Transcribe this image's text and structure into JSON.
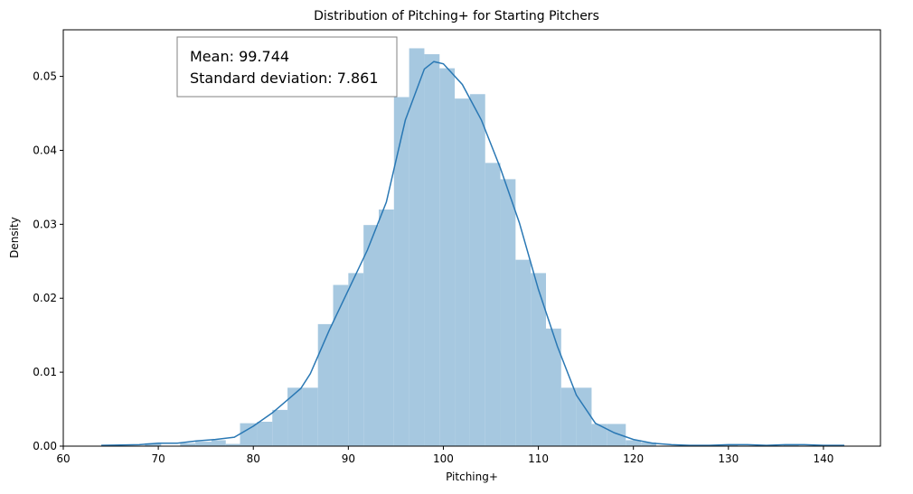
{
  "chart_data": {
    "type": "histogram",
    "title": "Distribution of Pitching+ for Starting Pitchers",
    "xlabel": "Pitching+",
    "ylabel": "Density",
    "xlim": [
      60,
      146
    ],
    "ylim": [
      0,
      0.0563
    ],
    "xticks": [
      60,
      70,
      80,
      90,
      100,
      110,
      120,
      130,
      140
    ],
    "yticks": [
      0.0,
      0.01,
      0.02,
      0.03,
      0.04,
      0.05
    ],
    "ytick_labels": [
      "0.00",
      "0.01",
      "0.02",
      "0.03",
      "0.04",
      "0.05"
    ],
    "bar_color": "#a6c8e0",
    "line_color": "#2a78b4",
    "bins": [
      {
        "x0": 68.6,
        "x1": 70.3,
        "density": 0.0004
      },
      {
        "x0": 72.3,
        "x1": 73.9,
        "density": 0.0004
      },
      {
        "x0": 73.9,
        "x1": 75.6,
        "density": 0.0006
      },
      {
        "x0": 75.6,
        "x1": 77.1,
        "density": 0.0008
      },
      {
        "x0": 77.1,
        "x1": 78.6,
        "density": 0.0003
      },
      {
        "x0": 78.6,
        "x1": 80.4,
        "density": 0.0031
      },
      {
        "x0": 80.4,
        "x1": 82.0,
        "density": 0.0033
      },
      {
        "x0": 82.0,
        "x1": 83.6,
        "density": 0.0049
      },
      {
        "x0": 83.6,
        "x1": 85.2,
        "density": 0.0079
      },
      {
        "x0": 85.2,
        "x1": 86.8,
        "density": 0.0079
      },
      {
        "x0": 86.8,
        "x1": 88.4,
        "density": 0.0165
      },
      {
        "x0": 88.4,
        "x1": 90.0,
        "density": 0.0218
      },
      {
        "x0": 90.0,
        "x1": 91.6,
        "density": 0.0234
      },
      {
        "x0": 91.6,
        "x1": 93.2,
        "density": 0.0299
      },
      {
        "x0": 93.2,
        "x1": 94.8,
        "density": 0.032
      },
      {
        "x0": 94.8,
        "x1": 96.4,
        "density": 0.0472
      },
      {
        "x0": 96.4,
        "x1": 98.0,
        "density": 0.0538
      },
      {
        "x0": 98.0,
        "x1": 99.6,
        "density": 0.053
      },
      {
        "x0": 99.6,
        "x1": 101.2,
        "density": 0.0511
      },
      {
        "x0": 101.2,
        "x1": 102.8,
        "density": 0.047
      },
      {
        "x0": 102.8,
        "x1": 104.4,
        "density": 0.0476
      },
      {
        "x0": 104.4,
        "x1": 106.0,
        "density": 0.0383
      },
      {
        "x0": 106.0,
        "x1": 107.6,
        "density": 0.0361
      },
      {
        "x0": 107.6,
        "x1": 109.2,
        "density": 0.0252
      },
      {
        "x0": 109.2,
        "x1": 110.8,
        "density": 0.0234
      },
      {
        "x0": 110.8,
        "x1": 112.4,
        "density": 0.0159
      },
      {
        "x0": 112.4,
        "x1": 114.0,
        "density": 0.0079
      },
      {
        "x0": 114.0,
        "x1": 115.6,
        "density": 0.0079
      },
      {
        "x0": 115.6,
        "x1": 117.2,
        "density": 0.003
      },
      {
        "x0": 117.2,
        "x1": 119.2,
        "density": 0.003
      },
      {
        "x0": 119.2,
        "x1": 120.8,
        "density": 0.0008
      },
      {
        "x0": 120.8,
        "x1": 122.4,
        "density": 0.0005
      },
      {
        "x0": 129.2,
        "x1": 131.0,
        "density": 0.0002
      },
      {
        "x0": 135.8,
        "x1": 137.4,
        "density": 0.0002
      }
    ],
    "kde": {
      "x": [
        64,
        68,
        70,
        72,
        74,
        76,
        78,
        80,
        82,
        84,
        85,
        86,
        88,
        90,
        92,
        94,
        96,
        98,
        99,
        100,
        102,
        104,
        106,
        108,
        110,
        112,
        114,
        116,
        118,
        120,
        122,
        124,
        126,
        128,
        130,
        132,
        134,
        136,
        138,
        140,
        142.2
      ],
      "y": [
        0.0001,
        0.0002,
        0.0004,
        0.0004,
        0.0007,
        0.0009,
        0.0012,
        0.0027,
        0.0045,
        0.0067,
        0.0078,
        0.0098,
        0.0157,
        0.0211,
        0.0265,
        0.033,
        0.0441,
        0.051,
        0.052,
        0.0517,
        0.0489,
        0.0441,
        0.0376,
        0.0302,
        0.0212,
        0.0135,
        0.0069,
        0.0031,
        0.0018,
        0.0009,
        0.0004,
        0.0002,
        0.0001,
        0.0001,
        0.0002,
        0.0002,
        0.0001,
        0.0002,
        0.0002,
        0.0001,
        0.0001
      ]
    }
  },
  "stats_box": {
    "mean_text": "Mean: 99.744",
    "std_text": "Standard deviation: 7.861"
  }
}
